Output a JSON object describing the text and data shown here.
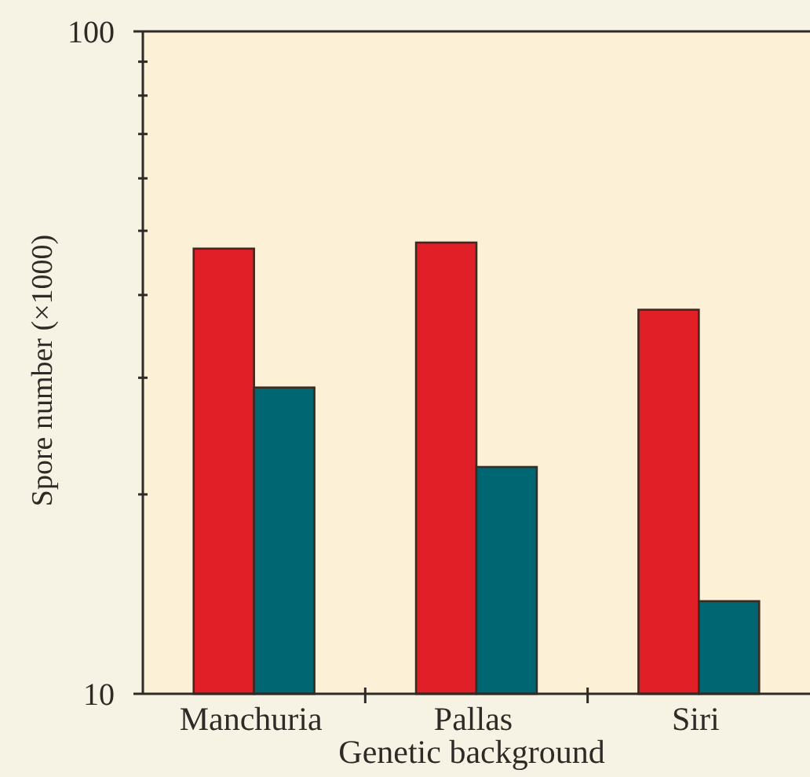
{
  "chart_data": {
    "type": "bar",
    "xlabel": "Genetic background",
    "ylabel": "Spore number (×1000)",
    "categories": [
      "Manchuria",
      "Pallas",
      "Siri"
    ],
    "series": [
      {
        "color": "#e01f26",
        "values": [
          47,
          48,
          38
        ]
      },
      {
        "color": "#006672",
        "values": [
          29,
          22,
          13.8
        ]
      }
    ],
    "log": true,
    "ylim": [
      10,
      100
    ],
    "yticks": [
      10,
      {
        "value": 20,
        "label": null
      },
      {
        "value": 30,
        "label": null
      },
      {
        "value": 40,
        "label": null
      },
      {
        "value": 50,
        "label": null
      },
      {
        "value": 60,
        "label": null
      },
      {
        "value": 70,
        "label": null
      },
      {
        "value": 80,
        "label": null
      },
      {
        "value": 90,
        "label": null
      },
      100
    ]
  }
}
